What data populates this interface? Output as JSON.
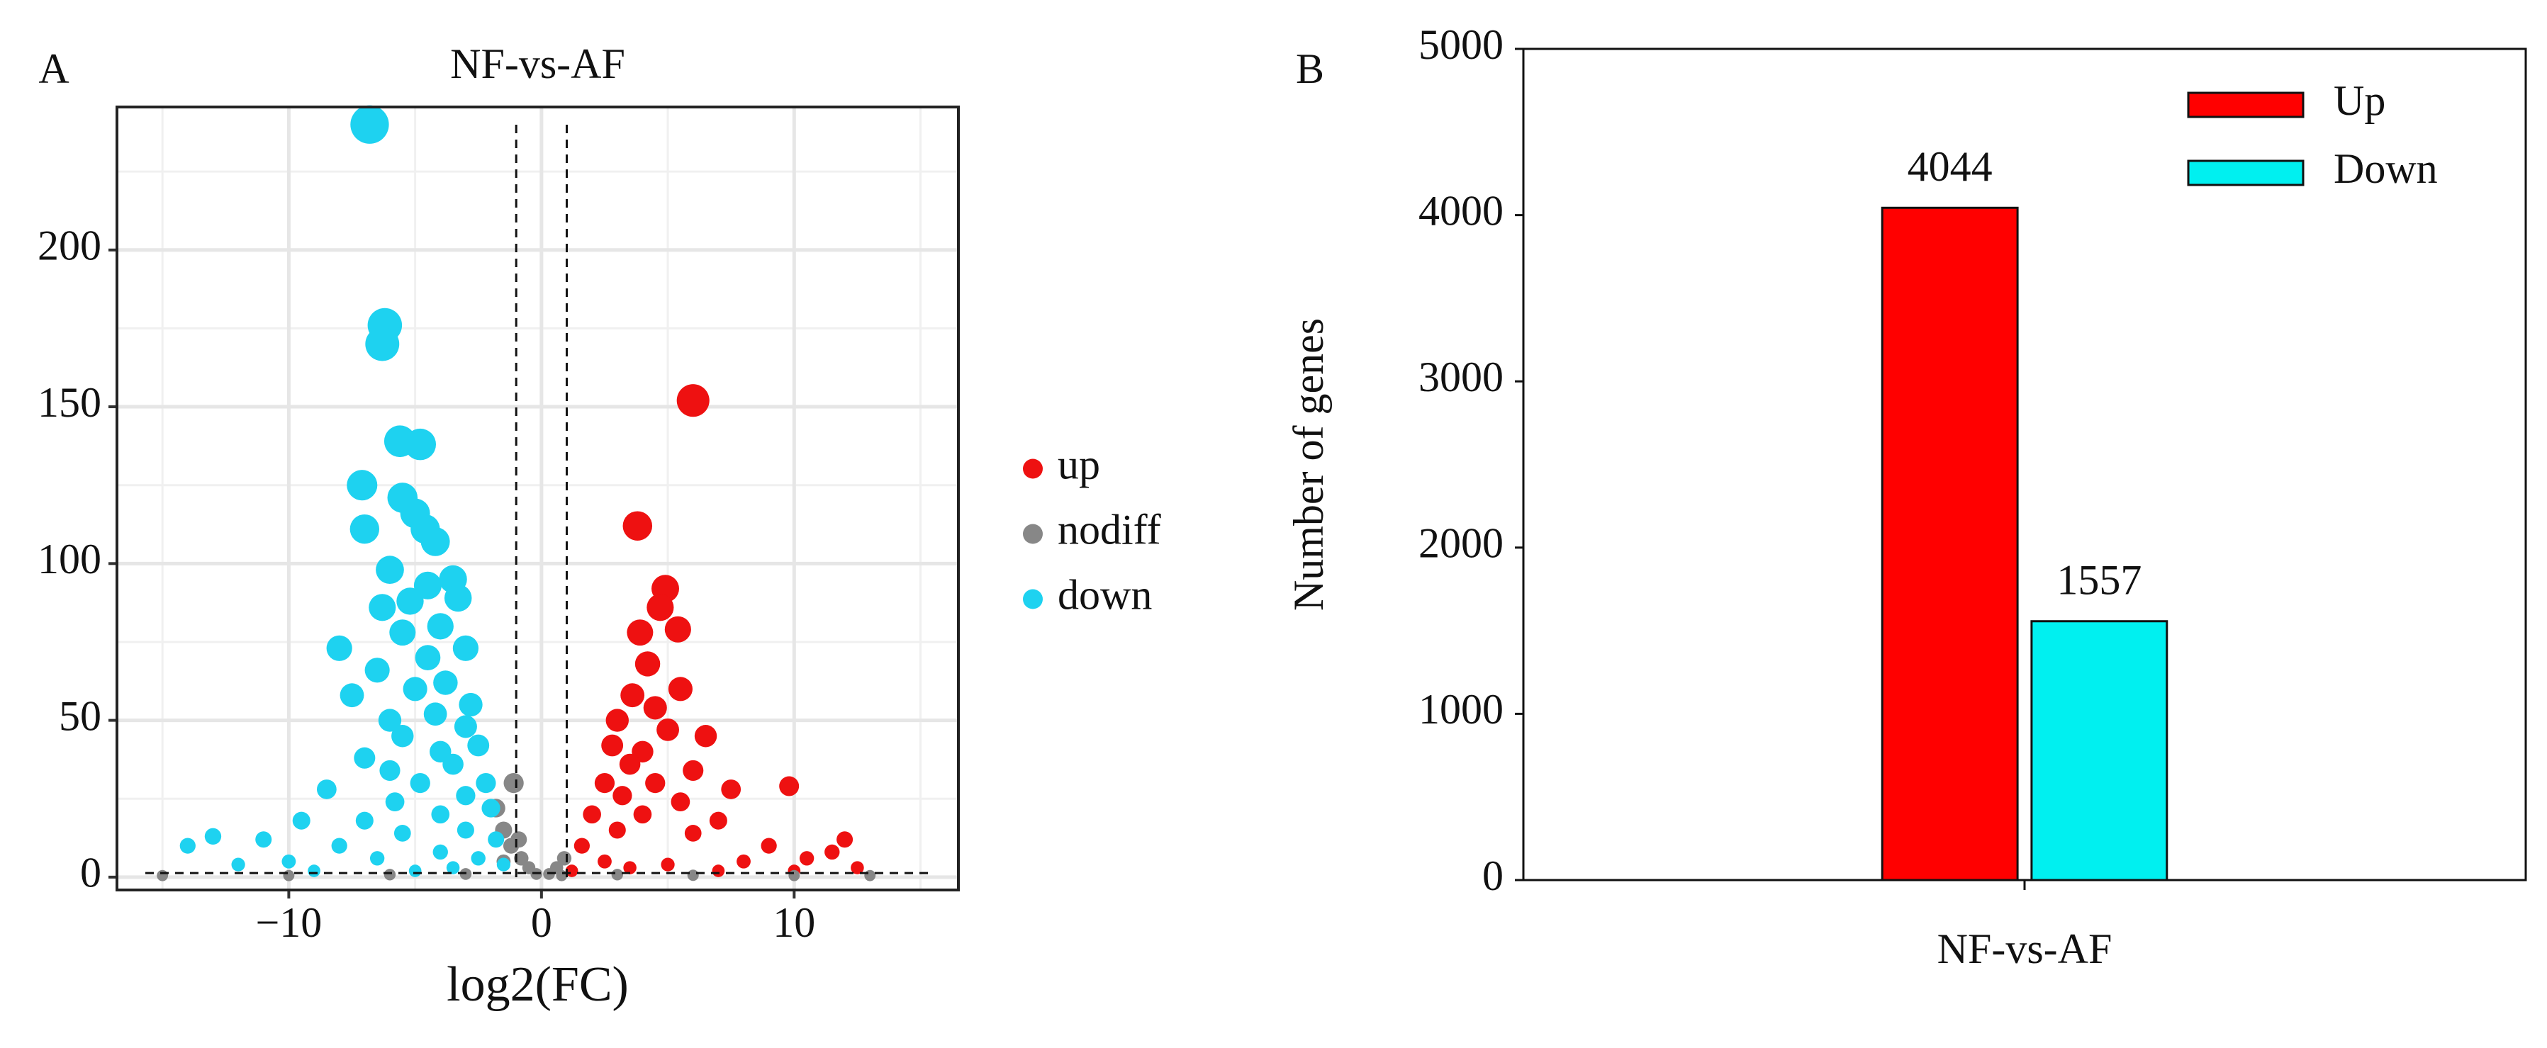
{
  "chart_data": [
    {
      "type": "scatter",
      "panel": "A",
      "title": "NF-vs-AF",
      "xlabel": "log2(FC)",
      "xlim": [
        -16.8,
        16.5
      ],
      "ylim": [
        -4.1,
        245.6
      ],
      "xticks": [
        {
          "value": -10,
          "label": "−10"
        },
        0,
        10
      ],
      "yticks": [
        0,
        50,
        100,
        150,
        200
      ],
      "grid": true,
      "legend": "right",
      "thresholds": {
        "x": [
          -1,
          1
        ],
        "y": 1.3
      },
      "series": [
        {
          "name": "up",
          "color": "#ee1111",
          "x": [
            6,
            3.8,
            4.9,
            4.7,
            5.4,
            3.9,
            4.2,
            5.5,
            3.6,
            4.5,
            3.0,
            5.0,
            6.5,
            2.8,
            4.0,
            3.5,
            6.0,
            2.5,
            4.5,
            7.5,
            9.8,
            3.2,
            5.5,
            2.0,
            4.0,
            7.0,
            3.0,
            6.0,
            1.6,
            9.0,
            12,
            11.5,
            10.5,
            8,
            2.5,
            5,
            12.5,
            1.2,
            7,
            10,
            3.5
          ],
          "values": [
            152,
            112,
            92,
            86,
            79,
            78,
            68,
            60,
            58,
            54,
            50,
            47,
            45,
            42,
            40,
            36,
            34,
            30,
            30,
            28,
            29,
            26,
            24,
            20,
            20,
            18,
            15,
            14,
            10,
            10,
            12,
            8,
            6,
            5,
            5,
            4,
            3,
            2,
            2,
            2,
            3
          ]
        },
        {
          "name": "nodiff",
          "color": "#878787",
          "x": [
            -1.8,
            -1.5,
            -1.2,
            -0.8,
            -0.5,
            -0.2,
            0.3,
            0.6,
            0.9,
            -1.5,
            -3,
            -6,
            -10,
            -15,
            3,
            6,
            10,
            13,
            -1.1,
            0.8,
            -0.9
          ],
          "values": [
            22,
            15,
            10,
            6,
            3,
            1,
            1,
            3,
            6,
            5,
            1,
            0.8,
            0.5,
            0.5,
            0.8,
            0.6,
            0.5,
            0.5,
            30,
            0.5,
            12
          ]
        },
        {
          "name": "down",
          "color": "#1ed2f0",
          "x": [
            -6.8,
            -6.2,
            -6.3,
            -5.6,
            -4.8,
            -7.1,
            -5.5,
            -5.0,
            -4.6,
            -4.2,
            -7.0,
            -6.0,
            -3.5,
            -4.5,
            -5.2,
            -3.3,
            -6.3,
            -4.0,
            -5.5,
            -3.0,
            -4.5,
            -8.0,
            -6.5,
            -3.8,
            -5.0,
            -7.5,
            -2.8,
            -4.2,
            -6.0,
            -3.0,
            -5.5,
            -2.5,
            -4.0,
            -7.0,
            -3.5,
            -6.0,
            -2.2,
            -4.8,
            -8.5,
            -3.0,
            -5.8,
            -2.0,
            -4.0,
            -9.5,
            -7.0,
            -3.0,
            -5.5,
            -1.8,
            -11,
            -14,
            -13,
            -8,
            -4.0,
            -2.5,
            -6.5,
            -10,
            -12,
            -1.5,
            -3.5,
            -9,
            -5
          ],
          "values": [
            240,
            176,
            170,
            139,
            138,
            125,
            121,
            116,
            111,
            107,
            111,
            98,
            95,
            93,
            88,
            89,
            86,
            80,
            78,
            73,
            70,
            73,
            66,
            62,
            60,
            58,
            55,
            52,
            50,
            48,
            45,
            42,
            40,
            38,
            36,
            34,
            30,
            30,
            28,
            26,
            24,
            22,
            20,
            18,
            18,
            15,
            14,
            12,
            12,
            10,
            13,
            10,
            8,
            6,
            6,
            5,
            4,
            4,
            3,
            2,
            2
          ]
        }
      ]
    },
    {
      "type": "bar",
      "panel": "B",
      "ylabel": "Number of genes",
      "categories": [
        "NF-vs-AF"
      ],
      "ylim": [
        0,
        5000
      ],
      "yticks": [
        0,
        1000,
        2000,
        3000,
        4000,
        5000
      ],
      "legend": "top-right",
      "data_labels": true,
      "series": [
        {
          "name": "Up",
          "color": "#ff0000",
          "values": [
            4044
          ]
        },
        {
          "name": "Down",
          "color": "#00f0f0",
          "values": [
            1557
          ]
        }
      ]
    }
  ]
}
